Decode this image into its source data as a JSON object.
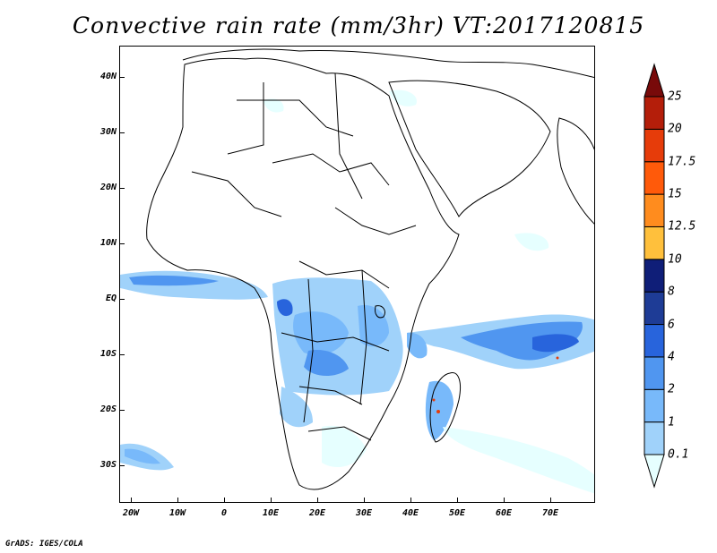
{
  "title": "Convective rain rate (mm/3hr) VT:2017120815",
  "footer": "GrADS: IGES/COLA",
  "lat_labels": [
    "40N",
    "30N",
    "20N",
    "10N",
    "EQ",
    "10S",
    "20S",
    "30S"
  ],
  "lon_labels": [
    "20W",
    "10W",
    "0",
    "10E",
    "20E",
    "30E",
    "40E",
    "50E",
    "60E",
    "70E"
  ],
  "colorbar": {
    "labels": [
      "0.1",
      "1",
      "2",
      "4",
      "6",
      "8",
      "10",
      "12.5",
      "15",
      "17.5",
      "20",
      "25"
    ],
    "colors": [
      "#e6ffff",
      "#a0d2fa",
      "#78b9fa",
      "#5096f0",
      "#2864dc",
      "#1e3c96",
      "#0f1e78",
      "#ffc03c",
      "#ff8c1e",
      "#ff5a0a",
      "#e63c0a",
      "#b41e0a",
      "#780a0a"
    ]
  },
  "rain_colors": {
    "light": "#e6ffff",
    "low": "#a0d2fa",
    "mid": "#78b9fa",
    "high": "#5096f0",
    "heavy": "#2864dc",
    "extreme": "#e63c0a"
  }
}
